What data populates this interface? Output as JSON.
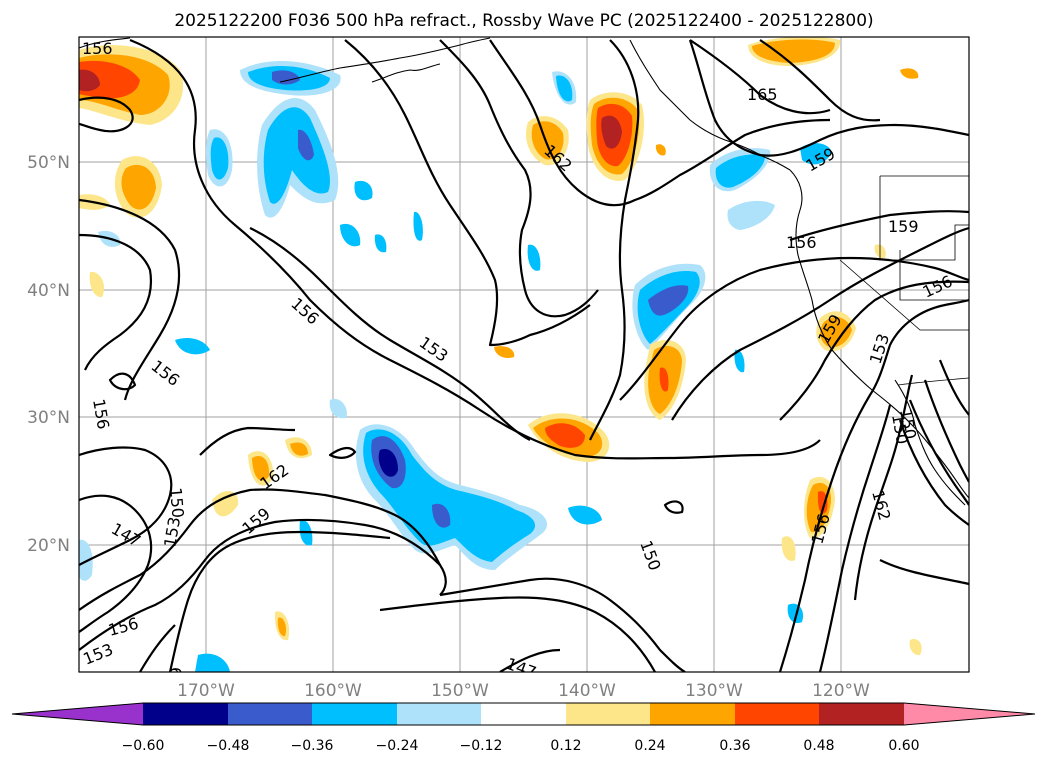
{
  "title": "2025122200 F036 500 hPa refract., Rossby Wave PC (2025122400 - 2025122800)",
  "map": {
    "lat_ticks": [
      "50°N",
      "40°N",
      "30°N",
      "20°N"
    ],
    "lon_ticks": [
      "170°W",
      "160°W",
      "150°W",
      "140°W",
      "130°W",
      "120°W"
    ],
    "contour_labels": [
      "156",
      "162",
      "165",
      "159",
      "156",
      "159",
      "156",
      "156",
      "153",
      "156",
      "156",
      "159",
      "153",
      "150",
      "162",
      "159",
      "150",
      "153",
      "147",
      "156",
      "153",
      "150",
      "147",
      "156",
      "162",
      "150",
      "6"
    ]
  },
  "colorbar": {
    "colors": [
      "#9932cc",
      "#00008b",
      "#3a5bcc",
      "#00bfff",
      "#aee2fa",
      "#ffffff",
      "#fde68a",
      "#ffa500",
      "#ff4500",
      "#b22222",
      "#ff8aa8"
    ],
    "labels": [
      "−0.60",
      "−0.48",
      "−0.36",
      "−0.24",
      "−0.12",
      "0.12",
      "0.24",
      "0.36",
      "0.48",
      "0.60"
    ]
  }
}
